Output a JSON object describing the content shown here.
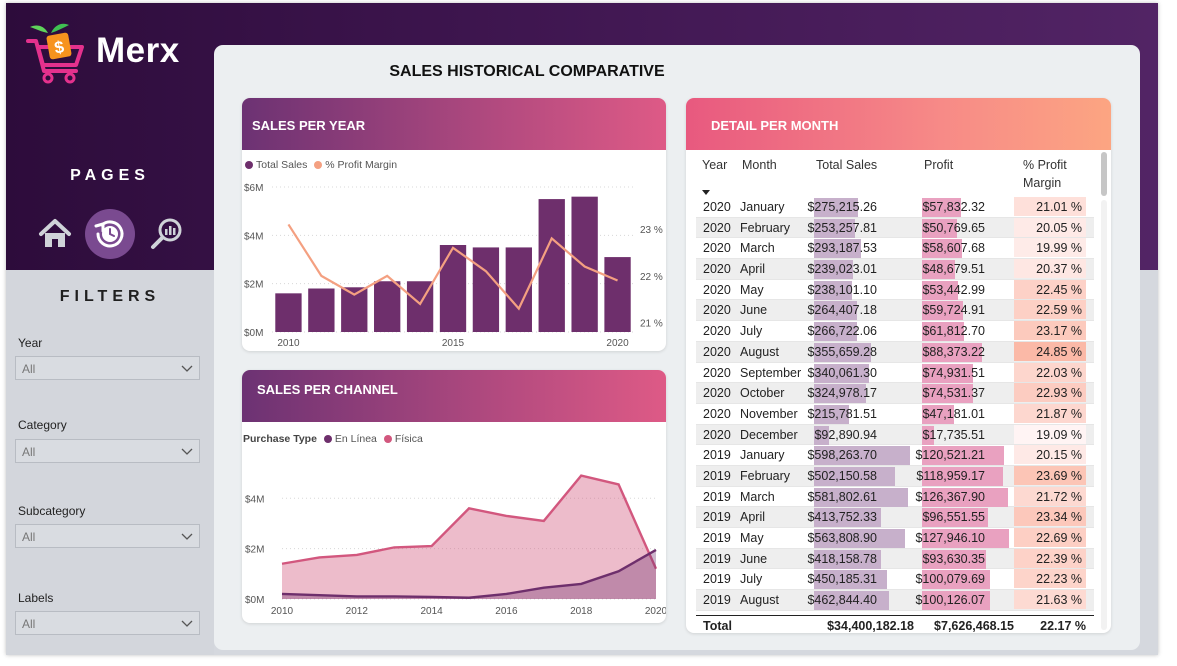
{
  "app": {
    "logo_text": "Merx"
  },
  "nav": {
    "pages_title": "PAGES",
    "icons": [
      "home-icon",
      "history-icon",
      "analytics-search-icon"
    ]
  },
  "filters": {
    "title": "FILTERS",
    "items": [
      {
        "label": "Year",
        "value": "All"
      },
      {
        "label": "Category",
        "value": "All"
      },
      {
        "label": "Subcategory",
        "value": "All"
      },
      {
        "label": "Labels",
        "value": "All"
      }
    ]
  },
  "main": {
    "title": "SALES HISTORICAL COMPARATIVE"
  },
  "colors": {
    "bar": "#6e2f6c",
    "line": "#f4a081",
    "online": "#6e2f6c",
    "physical": "#d2577e"
  },
  "sales_per_year": {
    "title": "SALES PER YEAR",
    "legend": [
      {
        "label": "Total Sales",
        "color": "#6e2f6c"
      },
      {
        "label": "% Profit Margin",
        "color": "#f4a081"
      }
    ],
    "chart_data": {
      "type": "bar",
      "x": [
        2010,
        2011,
        2012,
        2013,
        2014,
        2015,
        2016,
        2017,
        2018,
        2019,
        2020
      ],
      "series": [
        {
          "name": "Total Sales",
          "type": "bar",
          "axis": "left",
          "values": [
            1.6,
            1.8,
            1.85,
            2.1,
            2.1,
            3.6,
            3.5,
            3.5,
            5.5,
            5.6,
            3.1
          ]
        },
        {
          "name": "% Profit Margin",
          "type": "line",
          "axis": "right",
          "values": [
            23.1,
            22.0,
            21.6,
            22.0,
            21.4,
            22.6,
            22.1,
            21.3,
            22.8,
            22.2,
            21.9
          ]
        }
      ],
      "xticks": [
        "2010",
        "2015",
        "2020"
      ],
      "yticks_left": [
        "$0M",
        "$2M",
        "$4M",
        "$6M"
      ],
      "ylim_left": [
        0,
        6
      ],
      "yticks_right": [
        "21 %",
        "22 %",
        "23 %"
      ],
      "yticks_right_values": [
        21,
        22,
        23
      ],
      "ylim_right": [
        20.8,
        23.9
      ]
    }
  },
  "sales_per_channel": {
    "title": "SALES PER CHANNEL",
    "legend_title": "Purchase Type",
    "legend": [
      {
        "label": "En Línea",
        "color": "#6e2f6c"
      },
      {
        "label": "Física",
        "color": "#d2577e"
      }
    ],
    "chart_data": {
      "type": "area",
      "x": [
        2010,
        2011,
        2012,
        2013,
        2014,
        2015,
        2016,
        2017,
        2018,
        2019,
        2020
      ],
      "series": [
        {
          "name": "Física",
          "values": [
            1.4,
            1.65,
            1.75,
            2.05,
            2.1,
            3.6,
            3.3,
            3.1,
            4.9,
            4.55,
            1.2
          ]
        },
        {
          "name": "En Línea",
          "values": [
            0.2,
            0.15,
            0.1,
            0.1,
            0.08,
            0.05,
            0.2,
            0.45,
            0.6,
            1.1,
            1.95
          ]
        }
      ],
      "xticks": [
        "2010",
        "2012",
        "2014",
        "2016",
        "2018",
        "2020"
      ],
      "yticks": [
        "$0M",
        "$2M",
        "$4M"
      ],
      "ylim": [
        0,
        5.6
      ]
    }
  },
  "detail": {
    "title": "DETAIL PER MONTH",
    "columns": [
      "Year",
      "Month",
      "Total Sales",
      "Profit",
      "% Profit Margin"
    ],
    "rows": [
      {
        "year": "2020",
        "month": "January",
        "sales": "$275,215.26",
        "profit": "$57,832.32",
        "margin": "21.01 %",
        "sales_val": 275215.26,
        "profit_val": 57832.32,
        "margin_val": 21.01
      },
      {
        "year": "2020",
        "month": "February",
        "sales": "$253,257.81",
        "profit": "$50,769.65",
        "margin": "20.05 %",
        "sales_val": 253257.81,
        "profit_val": 50769.65,
        "margin_val": 20.05
      },
      {
        "year": "2020",
        "month": "March",
        "sales": "$293,187.53",
        "profit": "$58,607.68",
        "margin": "19.99 %",
        "sales_val": 293187.53,
        "profit_val": 58607.68,
        "margin_val": 19.99
      },
      {
        "year": "2020",
        "month": "April",
        "sales": "$239,023.01",
        "profit": "$48,679.51",
        "margin": "20.37 %",
        "sales_val": 239023.01,
        "profit_val": 48679.51,
        "margin_val": 20.37
      },
      {
        "year": "2020",
        "month": "May",
        "sales": "$238,101.10",
        "profit": "$53,442.99",
        "margin": "22.45 %",
        "sales_val": 238101.1,
        "profit_val": 53442.99,
        "margin_val": 22.45
      },
      {
        "year": "2020",
        "month": "June",
        "sales": "$264,407.18",
        "profit": "$59,724.91",
        "margin": "22.59 %",
        "sales_val": 264407.18,
        "profit_val": 59724.91,
        "margin_val": 22.59
      },
      {
        "year": "2020",
        "month": "July",
        "sales": "$266,722.06",
        "profit": "$61,812.70",
        "margin": "23.17 %",
        "sales_val": 266722.06,
        "profit_val": 61812.7,
        "margin_val": 23.17
      },
      {
        "year": "2020",
        "month": "August",
        "sales": "$355,659.28",
        "profit": "$88,373.22",
        "margin": "24.85 %",
        "sales_val": 355659.28,
        "profit_val": 88373.22,
        "margin_val": 24.85
      },
      {
        "year": "2020",
        "month": "September",
        "sales": "$340,061.30",
        "profit": "$74,931.51",
        "margin": "22.03 %",
        "sales_val": 340061.3,
        "profit_val": 74931.51,
        "margin_val": 22.03
      },
      {
        "year": "2020",
        "month": "October",
        "sales": "$324,978.17",
        "profit": "$74,531.37",
        "margin": "22.93 %",
        "sales_val": 324978.17,
        "profit_val": 74531.37,
        "margin_val": 22.93
      },
      {
        "year": "2020",
        "month": "November",
        "sales": "$215,781.51",
        "profit": "$47,181.01",
        "margin": "21.87 %",
        "sales_val": 215781.51,
        "profit_val": 47181.01,
        "margin_val": 21.87
      },
      {
        "year": "2020",
        "month": "December",
        "sales": "$92,890.94",
        "profit": "$17,735.51",
        "margin": "19.09 %",
        "sales_val": 92890.94,
        "profit_val": 17735.51,
        "margin_val": 19.09
      },
      {
        "year": "2019",
        "month": "January",
        "sales": "$598,263.70",
        "profit": "$120,521.21",
        "margin": "20.15 %",
        "sales_val": 598263.7,
        "profit_val": 120521.21,
        "margin_val": 20.15
      },
      {
        "year": "2019",
        "month": "February",
        "sales": "$502,150.58",
        "profit": "$118,959.17",
        "margin": "23.69 %",
        "sales_val": 502150.58,
        "profit_val": 118959.17,
        "margin_val": 23.69
      },
      {
        "year": "2019",
        "month": "March",
        "sales": "$581,802.61",
        "profit": "$126,367.90",
        "margin": "21.72 %",
        "sales_val": 581802.61,
        "profit_val": 126367.9,
        "margin_val": 21.72
      },
      {
        "year": "2019",
        "month": "April",
        "sales": "$413,752.33",
        "profit": "$96,551.55",
        "margin": "23.34 %",
        "sales_val": 413752.33,
        "profit_val": 96551.55,
        "margin_val": 23.34
      },
      {
        "year": "2019",
        "month": "May",
        "sales": "$563,808.90",
        "profit": "$127,946.10",
        "margin": "22.69 %",
        "sales_val": 563808.9,
        "profit_val": 127946.1,
        "margin_val": 22.69
      },
      {
        "year": "2019",
        "month": "June",
        "sales": "$418,158.78",
        "profit": "$93,630.35",
        "margin": "22.39 %",
        "sales_val": 418158.78,
        "profit_val": 93630.35,
        "margin_val": 22.39
      },
      {
        "year": "2019",
        "month": "July",
        "sales": "$450,185.31",
        "profit": "$100,079.69",
        "margin": "22.23 %",
        "sales_val": 450185.31,
        "profit_val": 100079.69,
        "margin_val": 22.23
      },
      {
        "year": "2019",
        "month": "August",
        "sales": "$462,844.40",
        "profit": "$100,126.07",
        "margin": "21.63 %",
        "sales_val": 462844.4,
        "profit_val": 100126.07,
        "margin_val": 21.63
      }
    ],
    "totals": {
      "label": "Total",
      "sales": "$34,400,182.18",
      "profit": "$7,626,468.15",
      "margin": "22.17 %"
    },
    "sales_max": 620000,
    "profit_max": 135000,
    "margin_range": [
      19,
      25
    ]
  }
}
